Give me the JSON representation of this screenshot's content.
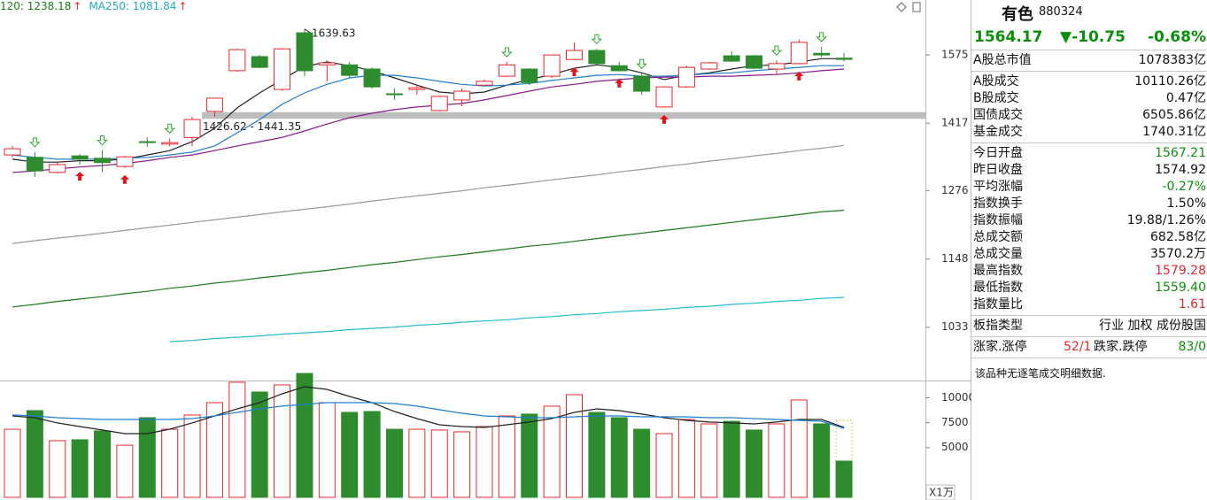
{
  "chart_data": [
    {
      "type": "candlestick",
      "legend": [
        {
          "text": "120: 1238.18",
          "color": "#1a7a1a",
          "arrow": "↑"
        },
        {
          "text": "MA250: 1081.84",
          "color": "#22aabb",
          "arrow": "↑"
        }
      ],
      "open": [
        1349,
        1344,
        1313,
        1347,
        1342,
        1325,
        1377,
        1372,
        1386,
        1443,
        1537,
        1571,
        1493,
        1630,
        1551,
        1551,
        1541,
        1483,
        1493,
        1445,
        1469,
        1503,
        1524,
        1541,
        1524,
        1564,
        1586,
        1549,
        1524,
        1453,
        1499,
        1541,
        1573,
        1573,
        1541,
        1554,
        1579,
        1567.21
      ],
      "high": [
        1368,
        1355,
        1334,
        1351,
        1359,
        1347,
        1386,
        1384,
        1431,
        1473,
        1590,
        1575,
        1592,
        1639.63,
        1562,
        1558,
        1545,
        1495,
        1503,
        1479,
        1495,
        1516,
        1558,
        1543,
        1576,
        1606,
        1590,
        1558,
        1530,
        1501,
        1549,
        1558,
        1584,
        1575,
        1562,
        1613,
        1595,
        1579.28
      ],
      "low": [
        1344,
        1304,
        1311,
        1329,
        1313,
        1322,
        1366,
        1367,
        1368,
        1431,
        1535,
        1543,
        1490,
        1524,
        1512,
        1520,
        1495,
        1469,
        1481,
        1443,
        1455,
        1501,
        1522,
        1503,
        1520,
        1562,
        1551,
        1535,
        1481,
        1451,
        1497,
        1539,
        1558,
        1541,
        1528,
        1552,
        1569,
        1559.4
      ],
      "close": [
        1362,
        1316,
        1329,
        1340,
        1333,
        1345,
        1375,
        1375,
        1425,
        1473,
        1588,
        1545,
        1590,
        1537,
        1556,
        1526,
        1499,
        1481,
        1497,
        1477,
        1489,
        1512,
        1551,
        1509,
        1575,
        1586,
        1554,
        1537,
        1489,
        1499,
        1545,
        1556,
        1560,
        1543,
        1554,
        1606,
        1575,
        1564.17
      ],
      "up_color": "#e8262a",
      "down_color": "#2e8b2e",
      "ma_lines": [
        {
          "color": "#222222",
          "values": [
            1340,
            1334,
            1334,
            1337,
            1337,
            1340,
            1349,
            1358,
            1377,
            1406,
            1451,
            1485,
            1516,
            1547,
            1558,
            1549,
            1537,
            1520,
            1503,
            1487,
            1483,
            1487,
            1503,
            1516,
            1528,
            1543,
            1551,
            1545,
            1532,
            1516,
            1526,
            1532,
            1541,
            1549,
            1551,
            1558,
            1566,
            1566
          ]
        },
        {
          "color": "#1e7fd0",
          "values": [
            1349,
            1344,
            1340,
            1340,
            1340,
            1342,
            1344,
            1349,
            1355,
            1368,
            1396,
            1425,
            1459,
            1485,
            1505,
            1520,
            1526,
            1526,
            1520,
            1512,
            1505,
            1501,
            1503,
            1507,
            1514,
            1520,
            1526,
            1528,
            1524,
            1524,
            1526,
            1530,
            1532,
            1537,
            1541,
            1545,
            1549,
            1549
          ]
        },
        {
          "color": "#8b1a8b",
          "values": [
            1313,
            1316,
            1320,
            1324,
            1327,
            1331,
            1337,
            1344,
            1349,
            1358,
            1368,
            1377,
            1386,
            1400,
            1415,
            1429,
            1439,
            1447,
            1453,
            1457,
            1461,
            1469,
            1479,
            1489,
            1499,
            1505,
            1512,
            1516,
            1520,
            1522,
            1522,
            1524,
            1524,
            1526,
            1528,
            1532,
            1537,
            1541
          ]
        },
        {
          "color": "#9a9a9a",
          "values": [
            1176,
            1181,
            1186,
            1190,
            1195,
            1200,
            1205,
            1210,
            1215,
            1220,
            1225,
            1230,
            1235,
            1240,
            1245,
            1250,
            1256,
            1261,
            1266,
            1271,
            1276,
            1282,
            1287,
            1292,
            1298,
            1303,
            1308,
            1314,
            1319,
            1325,
            1330,
            1336,
            1341,
            1347,
            1352,
            1358,
            1363,
            1369
          ]
        },
        {
          "color": "#1a7a1a",
          "values": [
            1066,
            1070,
            1075,
            1079,
            1083,
            1088,
            1092,
            1097,
            1101,
            1106,
            1110,
            1115,
            1119,
            1124,
            1128,
            1133,
            1138,
            1142,
            1147,
            1152,
            1156,
            1161,
            1166,
            1171,
            1175,
            1180,
            1185,
            1190,
            1195,
            1200,
            1205,
            1210,
            1215,
            1220,
            1225,
            1230,
            1235,
            1238.18
          ]
        },
        {
          "color": "#22bbcc",
          "values": [
            null,
            null,
            null,
            null,
            null,
            null,
            null,
            1010,
            1012,
            1015,
            1017,
            1019,
            1022,
            1024,
            1026,
            1029,
            1031,
            1033,
            1036,
            1038,
            1041,
            1043,
            1045,
            1048,
            1050,
            1053,
            1055,
            1058,
            1060,
            1062,
            1065,
            1067,
            1070,
            1072,
            1075,
            1077,
            1080,
            1081.84
          ]
        }
      ],
      "buy_signals": [
        3,
        5,
        25,
        27,
        29,
        35
      ],
      "sell_signals": [
        1,
        4,
        7,
        22,
        26,
        28,
        34,
        36
      ],
      "zone": {
        "low": 1426.62,
        "high": 1441.35,
        "label": "1426.62 - 1441.35"
      },
      "peak": 1639.63,
      "ylim": [
        951,
        1715
      ],
      "log_scale": true,
      "yticks": [
        1033,
        1148,
        1276,
        1417,
        1575
      ]
    },
    {
      "type": "bar",
      "values": [
        6840,
        8710,
        5690,
        5780,
        6670,
        5240,
        8000,
        6840,
        8270,
        9510,
        11560,
        10580,
        11290,
        12440,
        9510,
        8530,
        8620,
        6840,
        6840,
        6760,
        6580,
        7110,
        8180,
        8360,
        9160,
        10310,
        8530,
        8000,
        6840,
        6400,
        7820,
        7380,
        7640,
        6760,
        7380,
        9780,
        7380,
        3640
      ],
      "projected_last": 7730,
      "ma_lines": [
        {
          "color": "#222222",
          "values": [
            8180,
            8000,
            7470,
            7110,
            6760,
            6400,
            6400,
            6840,
            7470,
            8180,
            8890,
            9510,
            10400,
            11110,
            10840,
            10130,
            9510,
            8620,
            7910,
            7290,
            7110,
            7020,
            7290,
            7560,
            7910,
            8530,
            8890,
            8710,
            8360,
            8000,
            7730,
            7560,
            7470,
            7380,
            7560,
            7820,
            7820,
            7020
          ]
        },
        {
          "color": "#1e7fd0",
          "values": [
            8270,
            8180,
            8000,
            7910,
            7820,
            7820,
            7820,
            7820,
            7910,
            8180,
            8530,
            8890,
            9160,
            9330,
            9510,
            9510,
            9510,
            9420,
            9160,
            8800,
            8440,
            8180,
            8090,
            8000,
            8000,
            8090,
            8180,
            8180,
            8090,
            8090,
            8090,
            8000,
            8000,
            7910,
            7820,
            7730,
            7640,
            6930
          ]
        }
      ],
      "ylim": [
        0,
        12620
      ],
      "yticks": [
        5000,
        7500,
        10000
      ],
      "unit_label": "X1万"
    }
  ],
  "quote_panel": {
    "name": "有色",
    "code": "880324",
    "price": "1564.17",
    "change": "▼-10.75",
    "change_pct": "-0.68%",
    "sections": [
      [
        {
          "label": "A股总市值",
          "value": "1078383亿"
        }
      ],
      [
        {
          "label": "A股成交",
          "value": "10110.26亿"
        },
        {
          "label": "B股成交",
          "value": "0.47亿"
        },
        {
          "label": "国债成交",
          "value": "6505.86亿"
        },
        {
          "label": "基金成交",
          "value": "1740.31亿"
        }
      ],
      [
        {
          "label": "今日开盘",
          "value": "1567.21",
          "color": "green"
        },
        {
          "label": "昨日收盘",
          "value": "1574.92"
        },
        {
          "label": "平均涨幅",
          "value": "-0.27%",
          "color": "green"
        },
        {
          "label": "指数换手",
          "value": "1.50%"
        },
        {
          "label": "指数振幅",
          "value": "19.88/1.26%"
        },
        {
          "label": "总成交额",
          "value": "682.58亿"
        },
        {
          "label": "总成交量",
          "value": "3570.2万"
        },
        {
          "label": "最高指数",
          "value": "1579.28",
          "color": "red"
        },
        {
          "label": "最低指数",
          "value": "1559.40",
          "color": "green"
        },
        {
          "label": "指数量比",
          "value": "1.61",
          "color": "red"
        }
      ],
      [
        {
          "label": "板指类型",
          "value": "行业 加权 成份股国"
        }
      ]
    ],
    "breadth": {
      "up_label": "涨家.涨停",
      "up_value": "52/1",
      "down_label": "跌家.跌停",
      "down_value": "83/0"
    },
    "message": "该品种无逐笔成交明细数据."
  }
}
